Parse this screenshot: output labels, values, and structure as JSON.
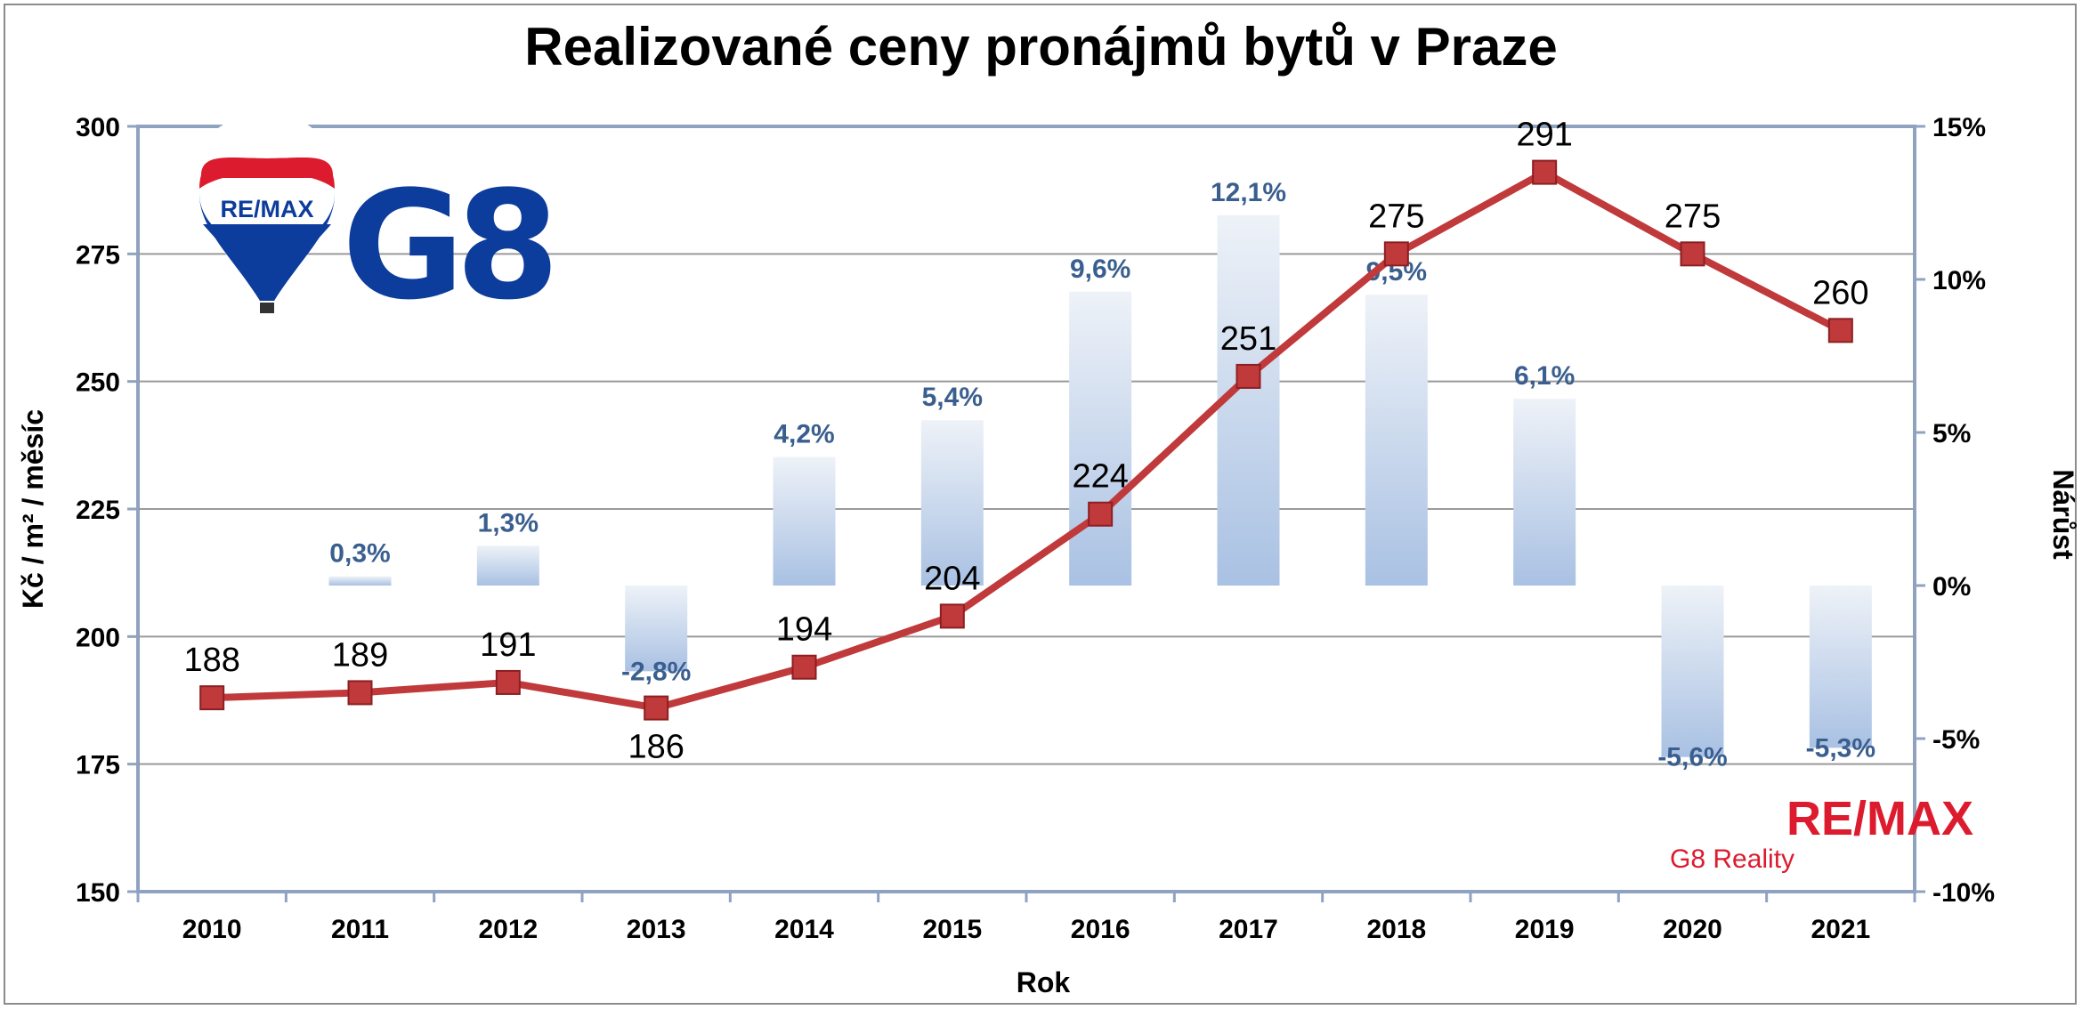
{
  "chart_data": {
    "type": "bar+line",
    "title": "Realizované ceny pronájmů bytů v Praze",
    "xlabel": "Rok",
    "ylabel_left": "Kč / m² / měsíc",
    "ylabel_right": "Nárůst",
    "categories": [
      "2010",
      "2011",
      "2012",
      "2013",
      "2014",
      "2015",
      "2016",
      "2017",
      "2018",
      "2019",
      "2020",
      "2021"
    ],
    "line": {
      "axis": "left",
      "values": [
        188,
        189,
        191,
        186,
        194,
        204,
        224,
        251,
        275,
        291,
        275,
        260
      ],
      "labels": [
        "188",
        "189",
        "191",
        "186",
        "194",
        "204",
        "224",
        "251",
        "275",
        "291",
        "275",
        "260"
      ],
      "color": "#c0393b"
    },
    "bars": {
      "axis": "right",
      "values": [
        0.3,
        1.3,
        -2.8,
        4.2,
        5.4,
        9.6,
        12.1,
        9.5,
        6.1,
        -5.6,
        -5.3
      ],
      "categories": [
        "2011",
        "2012",
        "2013",
        "2014",
        "2015",
        "2016",
        "2017",
        "2018",
        "2019",
        "2020",
        "2021"
      ],
      "labels": [
        "0,3%",
        "1,3%",
        "-2,8%",
        "4,2%",
        "5,4%",
        "9,6%",
        "12,1%",
        "9,5%",
        "6,1%",
        "-5,6%",
        "-5,3%"
      ],
      "color": "#a9c1e3"
    },
    "ylim_left": [
      150,
      300
    ],
    "yticks_left": [
      "150",
      "175",
      "200",
      "225",
      "250",
      "275",
      "300"
    ],
    "ylim_right": [
      -10,
      15
    ],
    "yticks_right": [
      "-10%",
      "-5%",
      "0%",
      "5%",
      "10%",
      "15%"
    ],
    "grid": true,
    "legend": "none"
  },
  "logos": {
    "balloon_text": "RE/MAX",
    "g8_text": "G8",
    "brand_name": "RE/MAX",
    "brand_sub": "G8 Reality",
    "brand_red": "#dc1c2e",
    "brand_blue": "#003da5"
  }
}
